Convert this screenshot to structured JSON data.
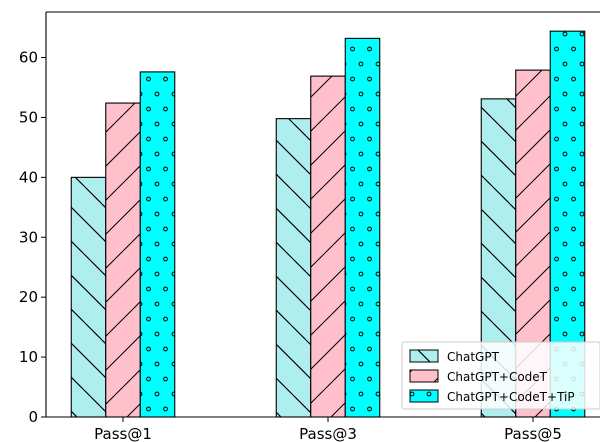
{
  "chart_data": {
    "type": "bar",
    "categories": [
      "Pass@1",
      "Pass@3",
      "Pass@5"
    ],
    "series": [
      {
        "name": "ChatGPT",
        "values": [
          40.0,
          49.8,
          53.1
        ],
        "color": "#afeeee",
        "hatch": "backslash"
      },
      {
        "name": "ChatGPT+CodeT",
        "values": [
          52.4,
          56.9,
          57.9
        ],
        "color": "#ffc0cb",
        "hatch": "slash"
      },
      {
        "name": "ChatGPT+CodeT+TiP",
        "values": [
          57.6,
          63.2,
          64.4
        ],
        "color": "#00ffff",
        "hatch": "dots"
      }
    ],
    "title": "",
    "xlabel": "",
    "ylabel": "",
    "ylim": [
      0,
      67.6
    ],
    "yticks": [
      0,
      10,
      20,
      30,
      40,
      50,
      60
    ],
    "grid": false,
    "legend": "lower-right"
  }
}
